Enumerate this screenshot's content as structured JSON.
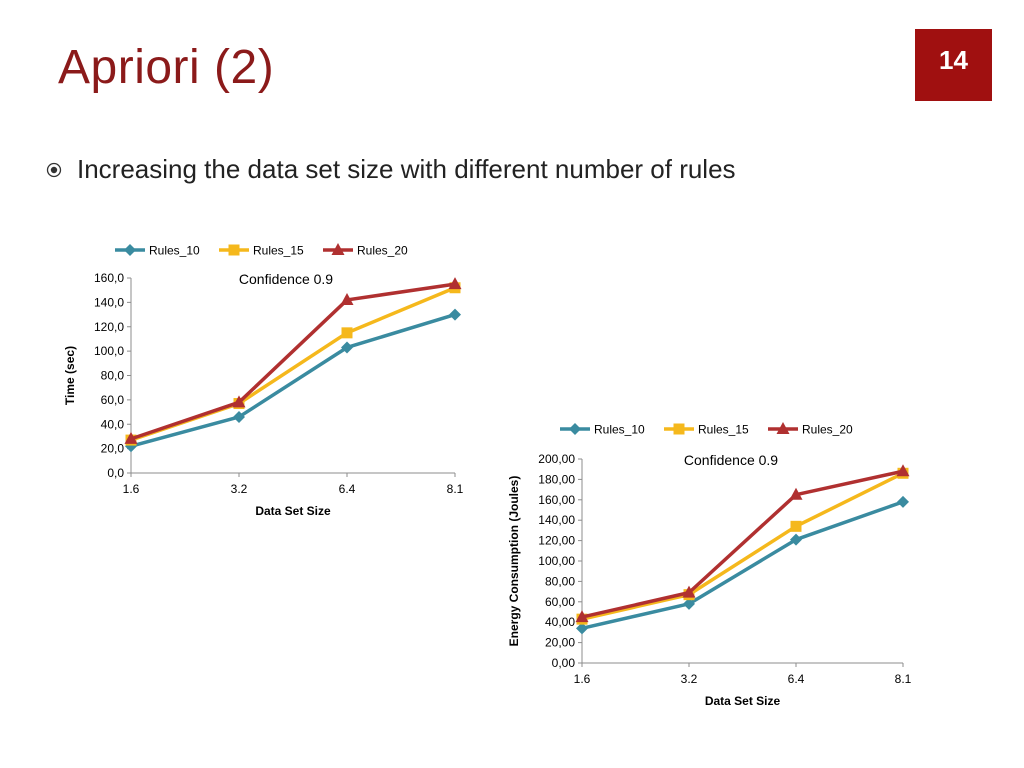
{
  "slide": {
    "title": "Apriori (2)",
    "page_number": "14",
    "bullet": "Increasing the data set size with different number of rules",
    "colors": {
      "title": "#8b1a1a",
      "badge": "#a01010"
    }
  },
  "chart_data": [
    {
      "type": "line",
      "title": "Confidence 0.9",
      "xlabel": "Data Set Size",
      "ylabel": "Time (sec)",
      "categories": [
        "1.6",
        "3.2",
        "6.4",
        "8.1"
      ],
      "ylim": [
        0,
        160
      ],
      "ytick_step": 20,
      "ytick_labels": [
        "0,0",
        "20,0",
        "40,0",
        "60,0",
        "80,0",
        "100,0",
        "120,0",
        "140,0",
        "160,0"
      ],
      "legend_position": "top",
      "grid": false,
      "series": [
        {
          "name": "Rules_10",
          "values": [
            22,
            46,
            103,
            130
          ],
          "color": "#3a8ba0",
          "marker": "diamond"
        },
        {
          "name": "Rules_15",
          "values": [
            27,
            57,
            115,
            152
          ],
          "color": "#f5b81c",
          "marker": "square"
        },
        {
          "name": "Rules_20",
          "values": [
            28,
            58,
            142,
            155
          ],
          "color": "#b03030",
          "marker": "triangle"
        }
      ]
    },
    {
      "type": "line",
      "title": "Confidence 0.9",
      "xlabel": "Data Set Size",
      "ylabel": "Energy Consumption (Joules)",
      "categories": [
        "1.6",
        "3.2",
        "6.4",
        "8.1"
      ],
      "ylim": [
        0,
        200
      ],
      "ytick_step": 20,
      "ytick_labels": [
        "0,00",
        "20,00",
        "40,00",
        "60,00",
        "80,00",
        "100,00",
        "120,00",
        "140,00",
        "160,00",
        "180,00",
        "200,00"
      ],
      "legend_position": "top",
      "grid": false,
      "series": [
        {
          "name": "Rules_10",
          "values": [
            34,
            58,
            121,
            158
          ],
          "color": "#3a8ba0",
          "marker": "diamond"
        },
        {
          "name": "Rules_15",
          "values": [
            43,
            67,
            134,
            186
          ],
          "color": "#f5b81c",
          "marker": "square"
        },
        {
          "name": "Rules_20",
          "values": [
            45,
            69,
            165,
            188
          ],
          "color": "#b03030",
          "marker": "triangle"
        }
      ]
    }
  ]
}
